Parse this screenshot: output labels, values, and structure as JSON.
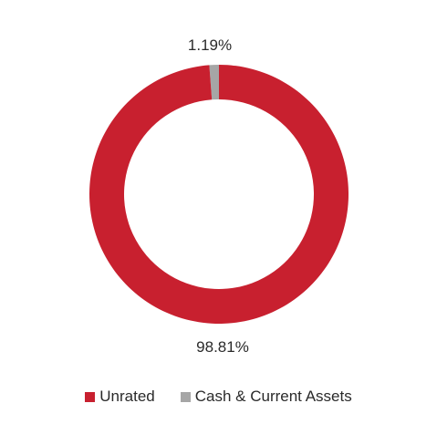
{
  "chart_data": {
    "type": "pie",
    "donut": true,
    "categories": [
      "Unrated",
      "Cash & Current Assets"
    ],
    "values": [
      98.81,
      1.19
    ],
    "data_labels": [
      "98.81%",
      "1.19%"
    ],
    "colors": [
      "#c8202f",
      "#a6a6a6"
    ],
    "legend_position": "bottom",
    "title": ""
  }
}
